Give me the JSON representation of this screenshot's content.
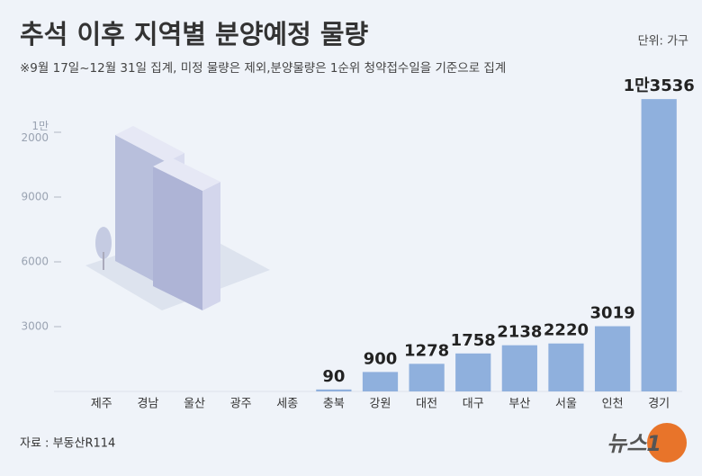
{
  "chart_data": {
    "type": "bar",
    "title": "추석 이후 지역별 분양예정 물량",
    "subtitle": "※9월 17일~12월 31일 집계, 미정 물량은 제외,분양물량은 1순위 청약접수일을 기준으로 집계",
    "unit": "단위: 가구",
    "source": "자료 : 부동산R114",
    "logo": "뉴스1",
    "categories": [
      "제주",
      "경남",
      "울산",
      "광주",
      "세종",
      "충북",
      "강원",
      "대전",
      "대구",
      "부산",
      "서울",
      "인천",
      "경기"
    ],
    "values": [
      0,
      0,
      0,
      0,
      0,
      90,
      900,
      1278,
      1758,
      2138,
      2220,
      3019,
      13536
    ],
    "value_labels": [
      null,
      null,
      null,
      null,
      null,
      "90",
      "900",
      "1278",
      "1758",
      "2138",
      "2220",
      "3019",
      "1만3536"
    ],
    "color": "#8fb0dd",
    "ylim": [
      0,
      14000
    ],
    "yticks": [
      3000,
      6000,
      9000,
      {
        "value": 12000,
        "label": "1만\n2000"
      }
    ]
  }
}
